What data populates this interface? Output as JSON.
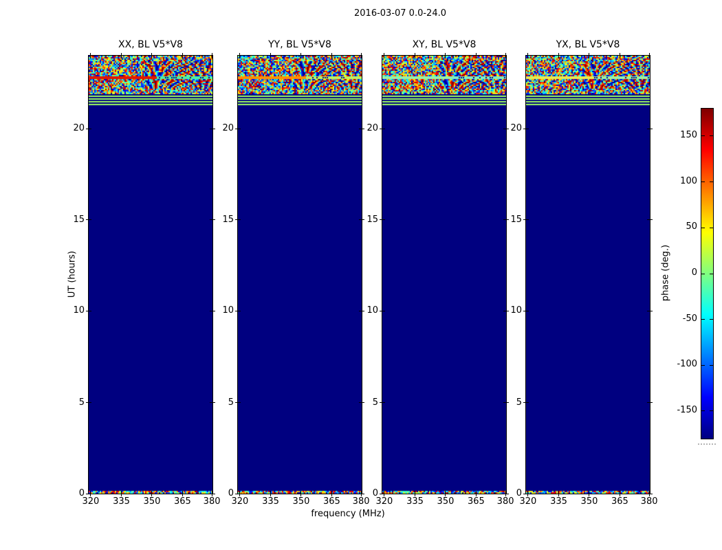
{
  "figure": {
    "title": "2016-03-07 0.0-24.0",
    "xlabel": "frequency (MHz)",
    "ylabel": "UT (hours)"
  },
  "panels": [
    {
      "title": "XX, BL V5*V8",
      "stripe_left_color": "#e01800",
      "stripe_right_color": "#50f0a0"
    },
    {
      "title": "YY, BL V5*V8",
      "stripe_left_color": "#ff9000",
      "stripe_right_color": "#c0f060"
    },
    {
      "title": "XY, BL V5*V8",
      "stripe_left_color": "#98f0a8",
      "stripe_right_color": "#80eec0"
    },
    {
      "title": "YX, BL V5*V8",
      "stripe_left_color": "#e8e850",
      "stripe_right_color": "#a0f0a0"
    }
  ],
  "axes": {
    "x_tick_labels": [
      "320",
      "335",
      "350",
      "365",
      "380"
    ],
    "y_tick_labels": [
      "0",
      "5",
      "10",
      "15",
      "20"
    ]
  },
  "colorbar": {
    "label": "phase (deg.)",
    "tick_labels": [
      "150",
      "100",
      "50",
      "0",
      "-50",
      "-100",
      "-150"
    ],
    "top_color": "#7f0000",
    "bottom_color": "#000080"
  },
  "chart_data": {
    "type": "heatmap",
    "title": "2016-03-07 0.0-24.0",
    "subplot_titles": [
      "XX, BL V5*V8",
      "YY, BL V5*V8",
      "XY, BL V5*V8",
      "YX, BL V5*V8"
    ],
    "xlabel": "frequency (MHz)",
    "ylabel": "UT (hours)",
    "xlim_mhz": [
      319,
      381
    ],
    "ylim_hours": [
      0,
      24
    ],
    "x_ticks": [
      320,
      335,
      350,
      365,
      380
    ],
    "y_ticks": [
      0,
      5,
      10,
      15,
      20
    ],
    "colorbar": {
      "label": "phase (deg.)",
      "colormap": "jet",
      "range_deg": [
        -180,
        180
      ],
      "ticks_deg": [
        150,
        100,
        50,
        0,
        -50,
        -100,
        -150
      ]
    },
    "regions": [
      {
        "ut_from": 22.0,
        "ut_to": 24.0,
        "description": "random multicolor phase noise across all frequencies, with one strong horizontal stripe near UT 22.8 (red in XX, orange/yellow-green in YY, pale green in XY, yellow/pale-green in YX) and wavy moire patterns toward higher frequencies"
      },
      {
        "ut_from": 21.4,
        "ut_to": 22.0,
        "description": "four thin light-green horizontal stripes on navy background"
      },
      {
        "ut_from": 0.2,
        "ut_to": 21.4,
        "description": "constant phase ~ -180 deg (solid navy blue)"
      },
      {
        "ut_from": 0.0,
        "ut_to": 0.2,
        "description": "thin strip of random multicolor phase noise at bottom edge"
      }
    ]
  }
}
